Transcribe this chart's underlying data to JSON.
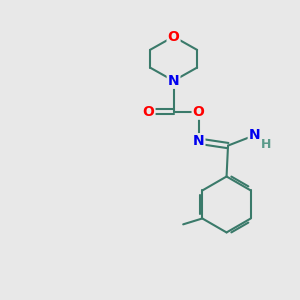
{
  "background_color": "#e8e8e8",
  "bond_color": "#3a7a6a",
  "bond_width": 1.5,
  "atom_colors": {
    "O": "#ff0000",
    "N": "#0000ee",
    "C": "#3a7a6a",
    "H": "#5a9a8a"
  },
  "font_size": 10,
  "fig_width": 3.0,
  "fig_height": 3.0,
  "dpi": 100
}
